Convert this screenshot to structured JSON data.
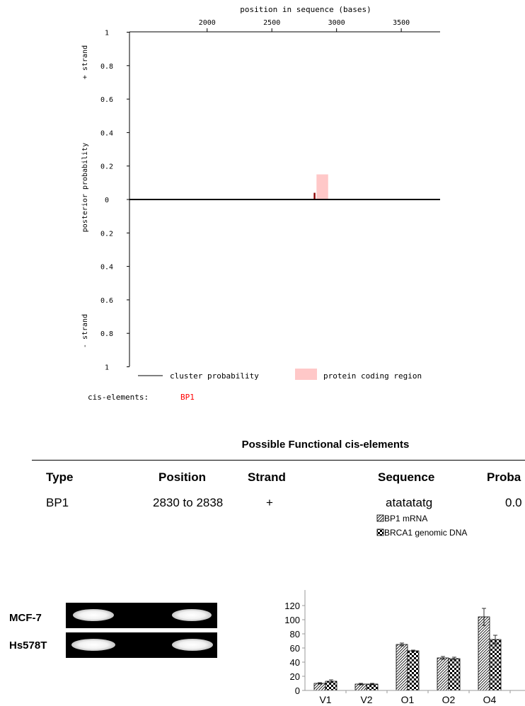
{
  "top_plot": {
    "x_axis_label": "position in sequence (bases)",
    "x_ticks": [
      "2000",
      "2500",
      "3000",
      "3500"
    ],
    "y_axis_label": "posterior probability",
    "plus_strand_label": "+ strand",
    "minus_strand_label": "- strand",
    "y_ticks_upper": [
      "1",
      "0.8",
      "0.6",
      "0.4",
      "0.2",
      "0"
    ],
    "y_ticks_lower": [
      "0.2",
      "0.4",
      "0.6",
      "0.8",
      "1"
    ],
    "legend": {
      "cluster_label": "cluster probability",
      "coding_label": "protein coding region"
    },
    "cis_label": "cis-elements:",
    "cis_value": "BP1",
    "colors": {
      "coding_region": "#ffc8c8",
      "cluster_bar": "#8b0000",
      "cis_value": "#ff0000"
    }
  },
  "chart_data": [
    {
      "type": "bar",
      "title": "",
      "xlabel": "position in sequence (bases)",
      "ylabel": "posterior probability",
      "xlim": [
        1400,
        3800
      ],
      "ylim": [
        -1,
        1
      ],
      "x_ticks": [
        2000,
        2500,
        3000,
        3500
      ],
      "series": [
        {
          "name": "cluster probability",
          "x": [
            2830
          ],
          "values": [
            0.04
          ]
        },
        {
          "name": "protein coding region",
          "x_range": [
            2845,
            2935
          ],
          "values": [
            0.15
          ]
        }
      ]
    },
    {
      "type": "bar",
      "title": "",
      "categories": [
        "V1",
        "V2",
        "O1",
        "O2",
        "O4"
      ],
      "ylim": [
        0,
        120
      ],
      "y_ticks": [
        0,
        20,
        40,
        60,
        80,
        100,
        120
      ],
      "legend_position": "top",
      "series": [
        {
          "name": "BP1 mRNA",
          "values": [
            10,
            9,
            65,
            46,
            104
          ],
          "errors": [
            1,
            1,
            2,
            2,
            12
          ],
          "pattern": "diagonal"
        },
        {
          "name": "BRCA1 genomic DNA",
          "values": [
            13,
            9,
            56,
            45,
            72
          ],
          "errors": [
            2,
            1,
            1,
            2,
            6
          ],
          "pattern": "checker"
        }
      ]
    }
  ],
  "table": {
    "title": "Possible Functional cis-elements",
    "headers": [
      "Type",
      "Position",
      "Strand",
      "Sequence",
      "Proba"
    ],
    "rows": [
      [
        "BP1",
        "2830 to 2838",
        "+",
        "atatatatg",
        "0.0"
      ]
    ]
  },
  "gel": {
    "labels": [
      "MCF-7",
      "Hs578T"
    ]
  }
}
